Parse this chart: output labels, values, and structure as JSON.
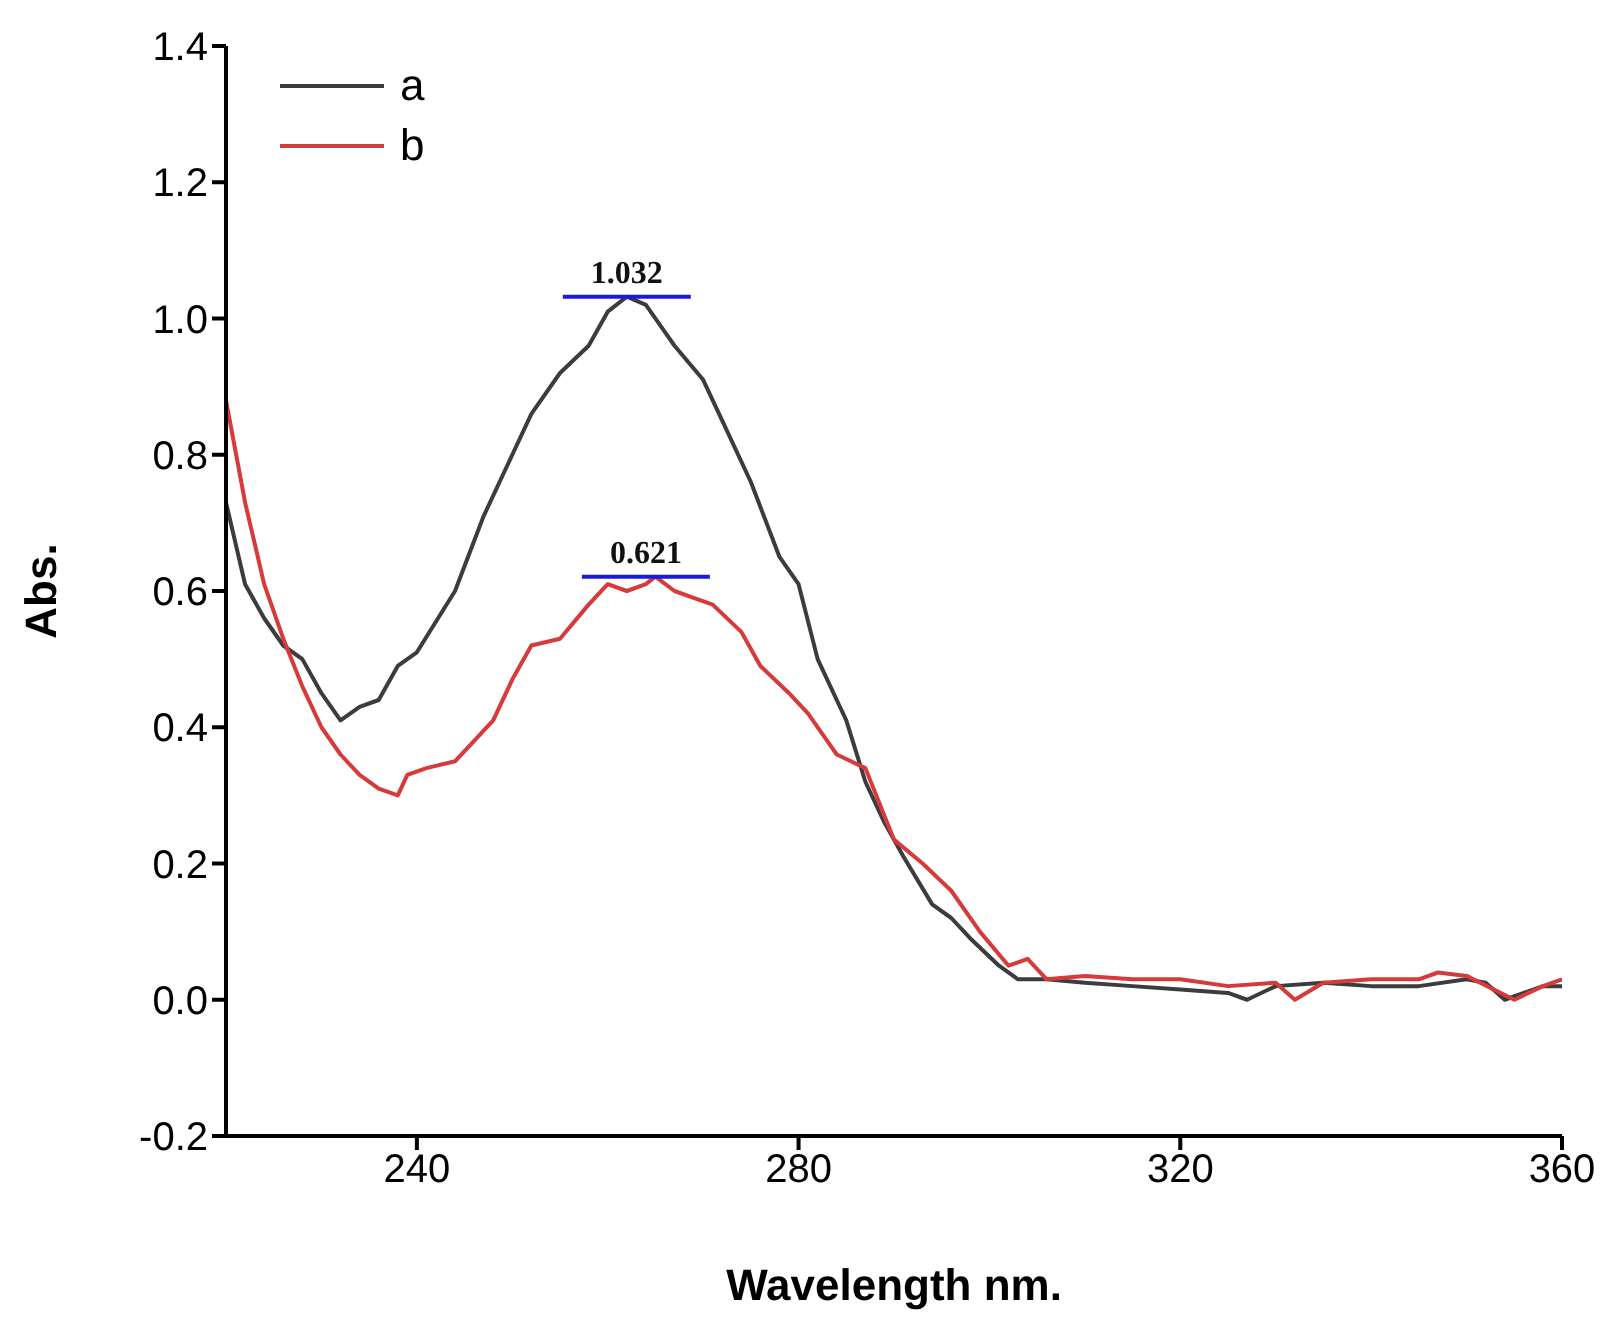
{
  "chart_data": {
    "type": "line",
    "xlabel": "Wavelength nm.",
    "ylabel": "Abs.",
    "xlim": [
      220,
      360
    ],
    "xticks": [
      240,
      280,
      320,
      360
    ],
    "ylim": [
      -0.2,
      1.4
    ],
    "yticks": [
      -0.2,
      {
        "value": 0,
        "label": "0.0"
      },
      0.2,
      0.4,
      0.6,
      0.8,
      {
        "value": 1,
        "label": "1.0"
      },
      1.2,
      1.4
    ],
    "grid": false,
    "legend": "top left",
    "marker": "none",
    "line_style": "solid",
    "series": [
      {
        "name": "a",
        "color": "#3c3c3c",
        "x": [
          220,
          222,
          224,
          226,
          228,
          230,
          232,
          234,
          236,
          238,
          240,
          244,
          247,
          250,
          252,
          255,
          258,
          260,
          262,
          264,
          266,
          267,
          270,
          272,
          275,
          278,
          280,
          282,
          284,
          285,
          287,
          289,
          291,
          294,
          296,
          298,
          301,
          303,
          306,
          310,
          315,
          320,
          325,
          327,
          330,
          335,
          340,
          345,
          350,
          352,
          354,
          356,
          358,
          360
        ],
        "values": [
          0.73,
          0.61,
          0.56,
          0.52,
          0.5,
          0.45,
          0.41,
          0.43,
          0.44,
          0.49,
          0.51,
          0.6,
          0.71,
          0.8,
          0.86,
          0.92,
          0.96,
          1.01,
          1.032,
          1.02,
          0.98,
          0.96,
          0.91,
          0.85,
          0.76,
          0.65,
          0.61,
          0.5,
          0.44,
          0.41,
          0.32,
          0.26,
          0.21,
          0.14,
          0.12,
          0.09,
          0.05,
          0.03,
          0.03,
          0.025,
          0.02,
          0.015,
          0.01,
          0.0,
          0.02,
          0.025,
          0.02,
          0.02,
          0.03,
          0.025,
          0.0,
          0.01,
          0.02,
          0.02
        ]
      },
      {
        "name": "b",
        "color": "#d63a3a",
        "x": [
          220,
          222,
          224,
          226,
          228,
          230,
          232,
          234,
          236,
          238,
          239,
          241,
          244,
          248,
          250,
          252,
          255,
          258,
          260,
          262,
          264,
          265,
          267,
          269,
          271,
          274,
          276,
          279,
          281,
          283,
          284,
          287,
          290,
          293,
          296,
          299,
          302,
          304,
          306,
          310,
          315,
          320,
          325,
          330,
          332,
          335,
          340,
          345,
          347,
          350,
          355,
          358,
          360
        ],
        "values": [
          0.88,
          0.73,
          0.61,
          0.53,
          0.46,
          0.4,
          0.36,
          0.33,
          0.31,
          0.3,
          0.33,
          0.34,
          0.35,
          0.41,
          0.47,
          0.52,
          0.53,
          0.58,
          0.61,
          0.6,
          0.61,
          0.621,
          0.6,
          0.59,
          0.58,
          0.54,
          0.49,
          0.45,
          0.42,
          0.38,
          0.36,
          0.34,
          0.235,
          0.2,
          0.16,
          0.1,
          0.05,
          0.06,
          0.03,
          0.035,
          0.03,
          0.03,
          0.02,
          0.025,
          0.0,
          0.025,
          0.03,
          0.03,
          0.04,
          0.035,
          0.0,
          0.02,
          0.03
        ]
      }
    ],
    "annotations": [
      {
        "text": "1.032",
        "x": 262,
        "y": 1.032
      },
      {
        "text": "0.621",
        "x": 264,
        "y": 0.621
      }
    ]
  }
}
